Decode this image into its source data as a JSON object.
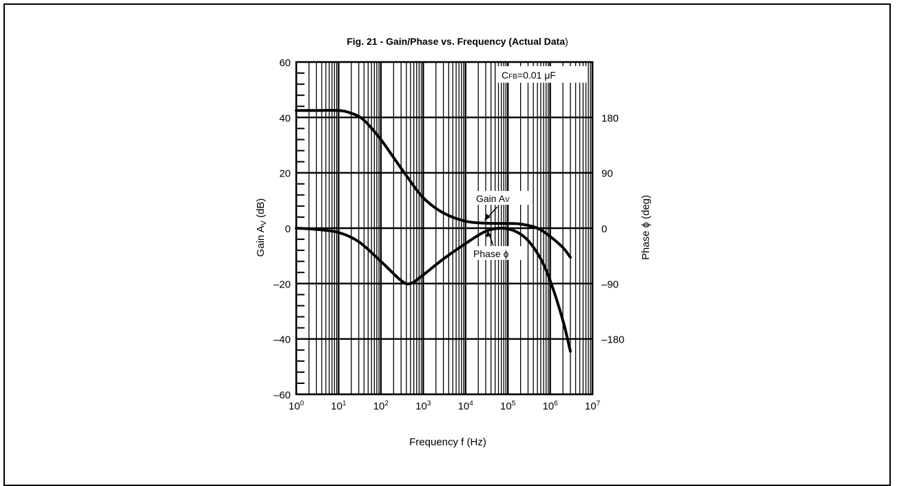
{
  "chart_data": {
    "type": "line",
    "title": "Fig. 21 - Gain/Phase vs. Frequency (Actual Data)",
    "title_main": "Fig. 21 - Gain/Phase vs. Frequency (Actual Data",
    "title_close": ")",
    "xlabel": "Frequency f (Hz)",
    "ylabel_left": {
      "main": "Gain A",
      "sub": "V",
      "tail": " (dB)"
    },
    "ylabel_right": "Phase ϕ (deg)",
    "x_scale": "log",
    "xlim": [
      1,
      10000000
    ],
    "ylim_left": [
      -60,
      60
    ],
    "ylim_right": [
      -270,
      270
    ],
    "grid": true,
    "x_ticks": [
      {
        "base": "10",
        "exp": "0"
      },
      {
        "base": "10",
        "exp": "1"
      },
      {
        "base": "10",
        "exp": "2"
      },
      {
        "base": "10",
        "exp": "3"
      },
      {
        "base": "10",
        "exp": "4"
      },
      {
        "base": "10",
        "exp": "5"
      },
      {
        "base": "10",
        "exp": "6"
      },
      {
        "base": "10",
        "exp": "7"
      }
    ],
    "y_left_ticks": [
      "60",
      "40",
      "20",
      "0",
      "–20",
      "–40",
      "–60"
    ],
    "y_right_ticks": [
      "180",
      "90",
      "0",
      "–90",
      "–180"
    ],
    "annotation": {
      "main": "C",
      "sub": "FB",
      "tail": "=0.01 μF"
    },
    "series": [
      {
        "name": "Gain Av",
        "label": {
          "main": "Gain A",
          "sub": "V"
        },
        "axis": "left",
        "points": [
          [
            1,
            42.5
          ],
          [
            3,
            42.5
          ],
          [
            10,
            42.5
          ],
          [
            20,
            41.5
          ],
          [
            40,
            39
          ],
          [
            100,
            32
          ],
          [
            200,
            25.5
          ],
          [
            400,
            19
          ],
          [
            1000,
            11
          ],
          [
            3000,
            5.5
          ],
          [
            10000,
            2.5
          ],
          [
            30000,
            1.8
          ],
          [
            100000,
            1.7
          ],
          [
            200000,
            1.5
          ],
          [
            500000,
            0
          ],
          [
            1000000,
            -3
          ],
          [
            2000000,
            -7
          ],
          [
            3000000,
            -10.5
          ]
        ]
      },
      {
        "name": "Phase ϕ",
        "label": "Phase ϕ",
        "axis": "right",
        "points": [
          [
            1,
            0
          ],
          [
            3,
            -2
          ],
          [
            10,
            -7
          ],
          [
            30,
            -22
          ],
          [
            100,
            -54
          ],
          [
            300,
            -85
          ],
          [
            500,
            -90
          ],
          [
            1000,
            -76
          ],
          [
            3000,
            -50
          ],
          [
            10000,
            -25
          ],
          [
            30000,
            -5
          ],
          [
            70000,
            0
          ],
          [
            150000,
            -5
          ],
          [
            300000,
            -20
          ],
          [
            600000,
            -50
          ],
          [
            1000000,
            -85
          ],
          [
            2000000,
            -150
          ],
          [
            3000000,
            -200
          ]
        ]
      }
    ]
  }
}
